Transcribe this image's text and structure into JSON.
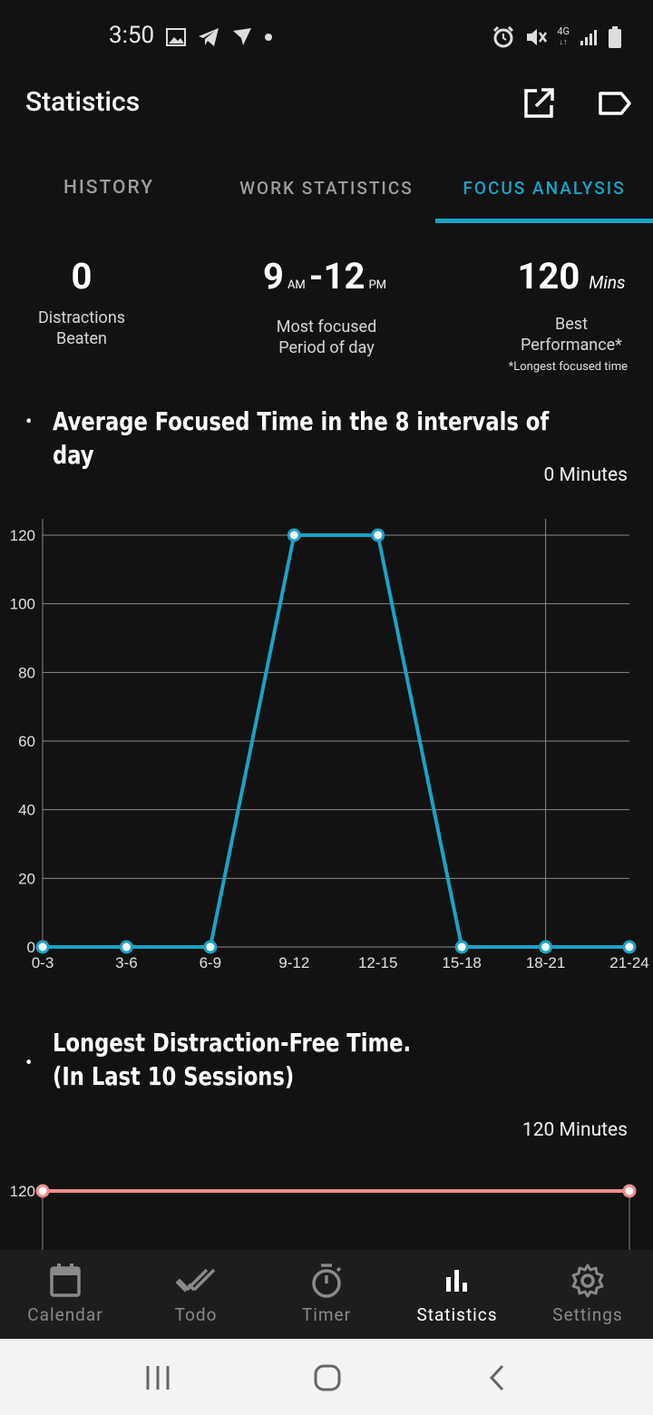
{
  "status_bar": {
    "time": "3:50",
    "left_icons": [
      "image-icon",
      "telegram-icon",
      "send-icon",
      "dot-icon"
    ],
    "right_icons": [
      "alarm-icon",
      "mute-icon",
      "4g-icon",
      "signal-icon",
      "battery-icon"
    ],
    "network_label": "4G"
  },
  "app_bar": {
    "title": "Statistics",
    "actions": [
      "open-external-icon",
      "label-icon"
    ]
  },
  "tabs": [
    {
      "label": "HISTORY",
      "active": false
    },
    {
      "label": "WORK STATISTICS",
      "active": false
    },
    {
      "label": "FOCUS ANALYSIS",
      "active": true
    }
  ],
  "stats": {
    "distractions": {
      "value": "0",
      "label_line1": "Distractions",
      "label_line2": "Beaten"
    },
    "focused_period": {
      "start": "9",
      "start_suffix": "AM",
      "separator": "-",
      "end": "12",
      "end_suffix": "PM",
      "label_line1": "Most focused",
      "label_line2": "Period of day"
    },
    "best": {
      "value": "120",
      "unit": "Mins",
      "label_line1": "Best",
      "label_line2": "Performance*",
      "note": "*Longest focused time"
    }
  },
  "section1": {
    "bullet": "•",
    "title": "Average Focused Time in the 8 intervals of day",
    "minutes_label": "0 Minutes"
  },
  "section2": {
    "bullet": "•",
    "title_line1": "Longest Distraction-Free Time.",
    "title_line2": "(In Last 10 Sessions)",
    "minutes_label": "120 Minutes"
  },
  "chart_data": [
    {
      "type": "line",
      "categories": [
        "0-3",
        "3-6",
        "6-9",
        "9-12",
        "12-15",
        "15-18",
        "18-21",
        "21-24"
      ],
      "values": [
        0,
        0,
        0,
        120,
        120,
        0,
        0,
        0
      ],
      "ylim": [
        0,
        120
      ],
      "yticks": [
        0,
        20,
        40,
        60,
        80,
        100,
        120
      ],
      "color": "#1aa3c4",
      "grid": true
    },
    {
      "type": "line",
      "values": [
        120,
        120
      ],
      "yticks": [
        120
      ],
      "color": "#f28b8b",
      "grid": true
    }
  ],
  "bottom_nav": [
    {
      "label": "Calendar",
      "icon": "calendar-icon",
      "active": false
    },
    {
      "label": "Todo",
      "icon": "double-check-icon",
      "active": false
    },
    {
      "label": "Timer",
      "icon": "timer-icon",
      "active": false
    },
    {
      "label": "Statistics",
      "icon": "bar-chart-icon",
      "active": true
    },
    {
      "label": "Settings",
      "icon": "gear-icon",
      "active": false
    }
  ],
  "system_nav": [
    "recents-icon",
    "home-icon",
    "back-icon"
  ]
}
